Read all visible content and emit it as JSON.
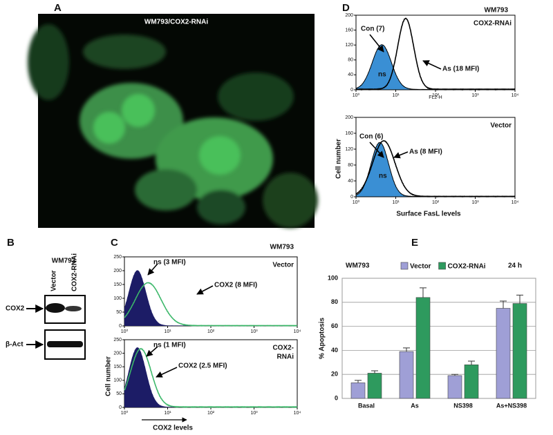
{
  "panel_a": {
    "label": "A",
    "title": "WM793/COX2-RNAi"
  },
  "panel_b": {
    "label": "B",
    "cell_line": "WM793",
    "lanes": [
      "Vector",
      "COX2-RNAi"
    ],
    "bands": [
      "COX2",
      "β-Act"
    ]
  },
  "panel_c": {
    "label": "C",
    "cell_line": "WM793",
    "y_label": "Cell number",
    "x_label": "COX2 levels",
    "ylim": [
      0,
      250
    ],
    "yticks": [
      0,
      50,
      100,
      150,
      200,
      250
    ],
    "xticks": [
      "10⁰",
      "10¹",
      "10²",
      "10³",
      "10⁴"
    ],
    "histograms": [
      {
        "condition": [
          "Vector"
        ],
        "annotations": [
          "ns (3 MFI)",
          "COX2 (8 MFI)"
        ]
      },
      {
        "condition": [
          "COX2-",
          "RNAi"
        ],
        "annotations": [
          "ns (1 MFI)",
          "COX2 (2.5 MFI)"
        ]
      }
    ]
  },
  "panel_d": {
    "label": "D",
    "cell_line": "WM793",
    "y_label": "Cell number",
    "x_label": "Surface FasL levels",
    "channel": "FL2-H",
    "ylim": [
      0,
      200
    ],
    "yticks": [
      0,
      40,
      80,
      120,
      160,
      200
    ],
    "xticks": [
      "10⁰",
      "10¹",
      "10²",
      "10³",
      "10⁴"
    ],
    "histograms": [
      {
        "condition": [
          "COX2-RNAi"
        ],
        "annotations": [
          "Con (7)",
          "As (18 MFI)",
          "ns"
        ]
      },
      {
        "condition": [
          "Vector"
        ],
        "annotations": [
          "Con (6)",
          "As (8 MFI)",
          "ns"
        ]
      }
    ]
  },
  "panel_e": {
    "label": "E",
    "cell_line": "WM793",
    "time": "24 h"
  },
  "chart_data": {
    "type": "bar",
    "y_label": "% Apoptosis",
    "categories": [
      "Basal",
      "As",
      "NS398",
      "As+NS398"
    ],
    "series": [
      {
        "name": "Vector",
        "color": "#9f9fd6",
        "values": [
          13,
          39,
          19,
          75
        ],
        "errors": [
          2,
          3,
          1,
          6
        ]
      },
      {
        "name": "COX2-RNAi",
        "color": "#2e9a5e",
        "values": [
          21,
          84,
          28,
          79
        ],
        "errors": [
          2,
          8,
          3,
          7
        ]
      }
    ],
    "ylim": [
      0,
      100
    ],
    "yticks": [
      0,
      20,
      40,
      60,
      80,
      100
    ],
    "grid": true,
    "legend": "top"
  }
}
